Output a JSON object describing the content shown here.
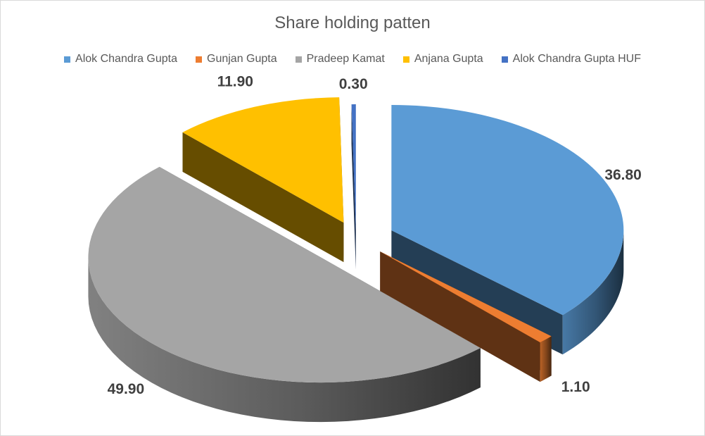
{
  "chart_data": {
    "type": "pie",
    "title": "Share holding patten",
    "categories": [
      "Alok Chandra Gupta",
      "Gunjan Gupta",
      "Pradeep Kamat",
      "Anjana Gupta",
      "Alok Chandra Gupta HUF"
    ],
    "values": [
      36.8,
      1.1,
      49.9,
      11.9,
      0.3
    ],
    "labels": [
      "36.80",
      "1.10",
      "49.90",
      "11.90",
      "0.30"
    ],
    "colors": [
      "#5b9bd5",
      "#ed7d31",
      "#a5a5a5",
      "#ffc000",
      "#4472c4"
    ],
    "style": "3d-exploded",
    "legend_position": "top"
  }
}
